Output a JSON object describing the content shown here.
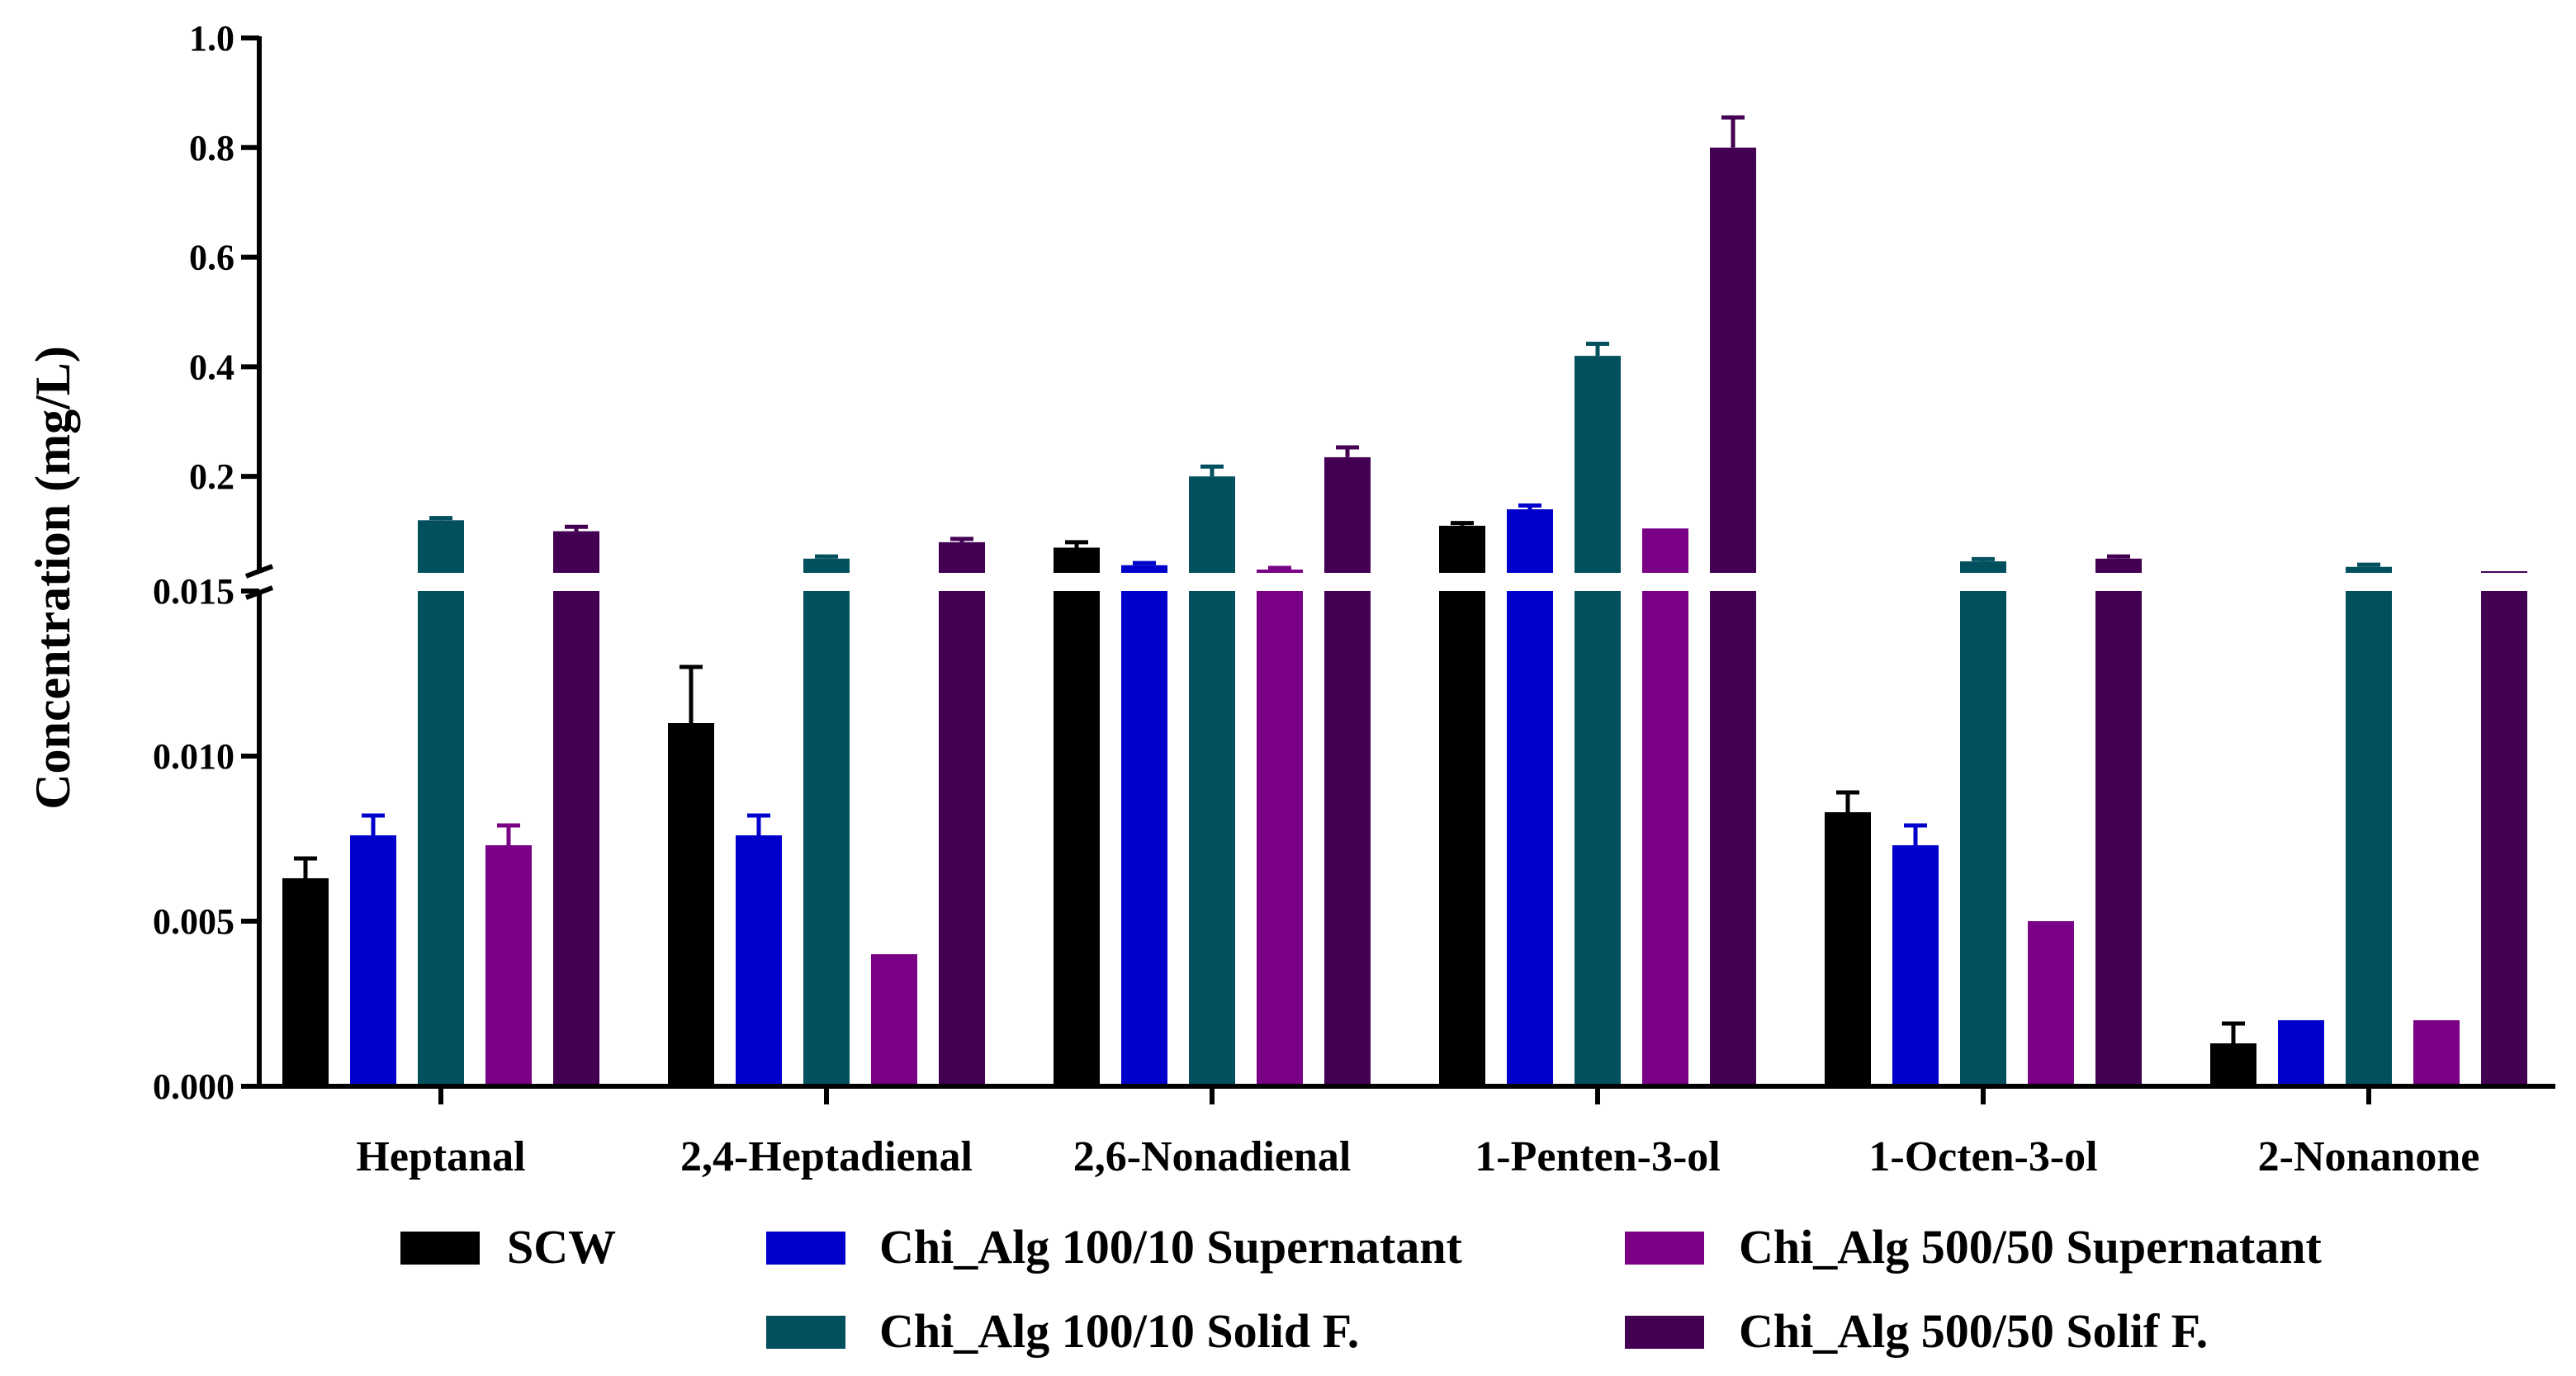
{
  "chart_data": {
    "type": "bar",
    "ylabel": "Concentration (mg/L)",
    "xlabel": "",
    "y_axis_break": {
      "lower_segment": {
        "ylim": [
          0,
          0.015
        ],
        "ticks": [
          "0.000",
          "0.005",
          "0.010",
          "0.015"
        ]
      },
      "upper_segment": {
        "ylim": [
          0.015,
          1.0
        ],
        "ticks": [
          "0.2",
          "0.4",
          "0.6",
          "0.8",
          "1.0"
        ]
      }
    },
    "categories": [
      "Heptanal",
      "2,4-Heptadienal",
      "2,6-Nonadienal",
      "1-Penten-3-ol",
      "1-Octen-3-ol",
      "2-Nonanone"
    ],
    "series": [
      {
        "name": "SCW",
        "color": "#000000",
        "values": [
          0.0063,
          0.011,
          0.07,
          0.11,
          0.0083,
          0.0013
        ],
        "errors": [
          0.0006,
          0.0017,
          0.01,
          0.005,
          0.0006,
          0.0006
        ]
      },
      {
        "name": "Chi_Alg 100/10 Supernatant",
        "color": "#0000cc",
        "values": [
          0.0076,
          0.0076,
          0.038,
          0.14,
          0.0073,
          0.002
        ],
        "errors": [
          0.0006,
          0.0006,
          0.004,
          0.007,
          0.0006,
          0
        ]
      },
      {
        "name": "Chi_Alg 500/50 Supernatant",
        "color": "#7a0085",
        "values": [
          0.0073,
          0.004,
          0.03,
          0.105,
          0.005,
          0.002
        ],
        "errors": [
          0.0006,
          0,
          0.003,
          0,
          0,
          0
        ]
      },
      {
        "name": "Chi_Alg 100/10 Solid F.",
        "color": "#02505e",
        "values": [
          0.12,
          0.05,
          0.2,
          0.42,
          0.045,
          0.035
        ],
        "errors": [
          0.004,
          0.004,
          0.018,
          0.022,
          0.004,
          0.004
        ]
      },
      {
        "name": "Chi_Alg 500/50 Solif F.",
        "color": "#430053",
        "values": [
          0.1,
          0.08,
          0.235,
          0.8,
          0.05,
          0.027
        ],
        "errors": [
          0.008,
          0.006,
          0.018,
          0.055,
          0.004,
          0
        ]
      }
    ],
    "bar_order": [
      "SCW",
      "Chi_Alg 100/10 Supernatant",
      "Chi_Alg 100/10 Solid F.",
      "Chi_Alg 500/50 Supernatant",
      "Chi_Alg 500/50 Solif F."
    ],
    "legend": {
      "placement": "bottom",
      "rows": [
        [
          "SCW",
          "Chi_Alg 100/10 Supernatant",
          "Chi_Alg 500/50 Supernatant"
        ],
        [
          "Chi_Alg 100/10 Solid F.",
          "Chi_Alg 500/50 Solif F."
        ]
      ]
    }
  }
}
